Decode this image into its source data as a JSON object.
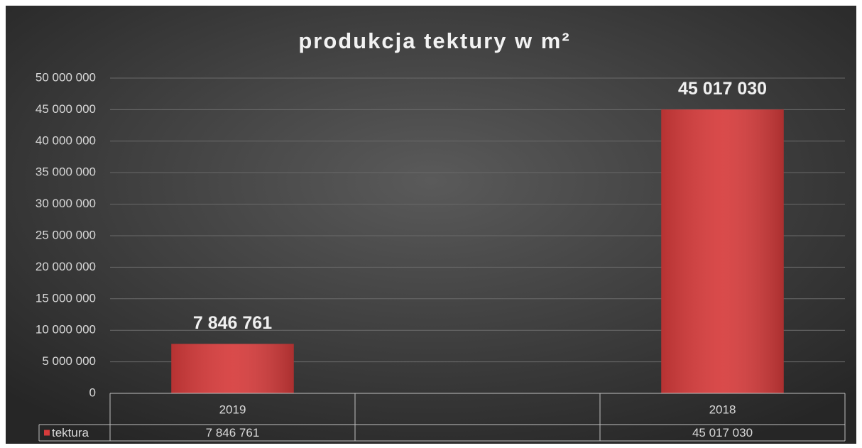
{
  "chart_data": {
    "type": "bar",
    "title": "produkcja tektury w m²",
    "categories": [
      "2019",
      null,
      "2018"
    ],
    "series": [
      {
        "name": "tektura",
        "color": "#d63b3b",
        "values": [
          7846761,
          null,
          45017030
        ],
        "value_labels": [
          "7 846 761",
          null,
          "45 017 030"
        ]
      }
    ],
    "ylim": [
      0,
      50000000
    ],
    "yticks": [
      0,
      {
        "value": 5000000,
        "label": "5 000 000"
      },
      {
        "value": 10000000,
        "label": "10 000 000"
      },
      {
        "value": 15000000,
        "label": "15 000 000"
      },
      {
        "value": 20000000,
        "label": "20 000 000"
      },
      {
        "value": 25000000,
        "label": "25 000 000"
      },
      {
        "value": 30000000,
        "label": "30 000 000"
      },
      {
        "value": 35000000,
        "label": "35 000 000"
      },
      {
        "value": 40000000,
        "label": "40 000 000"
      },
      {
        "value": 45000000,
        "label": "45 000 000"
      },
      {
        "value": 50000000,
        "label": "50 000 000"
      }
    ],
    "grid": true,
    "data_table": true
  }
}
